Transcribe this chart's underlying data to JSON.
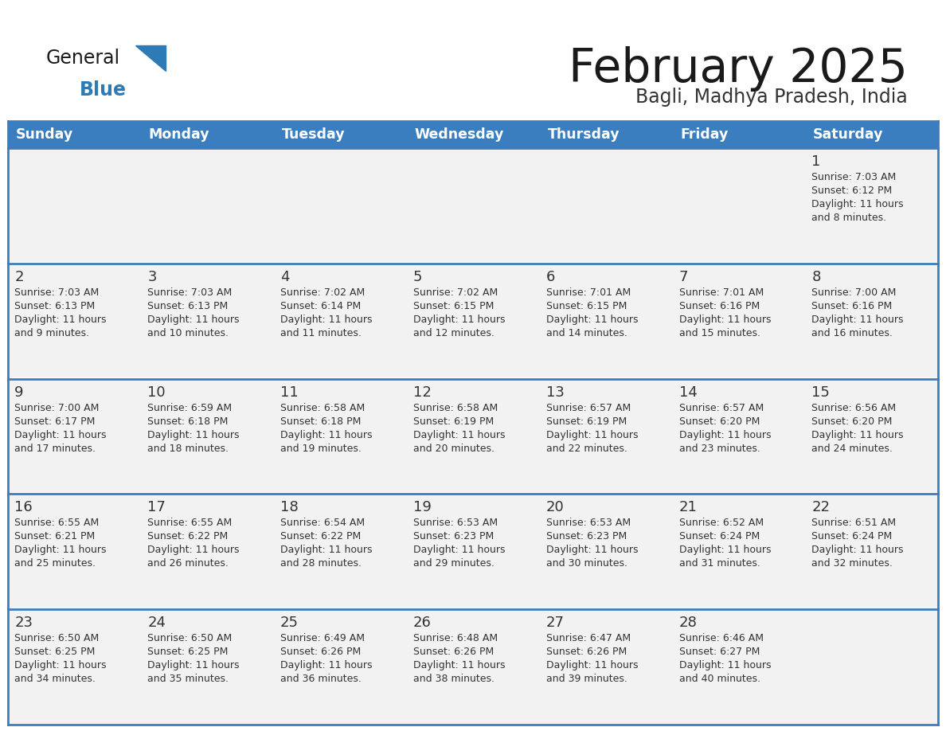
{
  "title": "February 2025",
  "subtitle": "Bagli, Madhya Pradesh, India",
  "header_color": "#3a7ebf",
  "header_text_color": "#ffffff",
  "day_names": [
    "Sunday",
    "Monday",
    "Tuesday",
    "Wednesday",
    "Thursday",
    "Friday",
    "Saturday"
  ],
  "cell_bg": "#f2f2f2",
  "cell_border_color": "#3a7ebf",
  "day_num_color": "#333333",
  "info_color": "#333333",
  "bg_color": "#ffffff",
  "title_color": "#1a1a1a",
  "subtitle_color": "#333333",
  "logo_general_color": "#1a1a1a",
  "logo_blue_color": "#2e7ab5",
  "logo_triangle_color": "#2e7ab5",
  "calendar": [
    [
      null,
      null,
      null,
      null,
      null,
      null,
      {
        "day": 1,
        "sunrise": "7:03 AM",
        "sunset": "6:12 PM",
        "daylight": "11 hours and 8 minutes."
      }
    ],
    [
      {
        "day": 2,
        "sunrise": "7:03 AM",
        "sunset": "6:13 PM",
        "daylight": "11 hours and 9 minutes."
      },
      {
        "day": 3,
        "sunrise": "7:03 AM",
        "sunset": "6:13 PM",
        "daylight": "11 hours and 10 minutes."
      },
      {
        "day": 4,
        "sunrise": "7:02 AM",
        "sunset": "6:14 PM",
        "daylight": "11 hours and 11 minutes."
      },
      {
        "day": 5,
        "sunrise": "7:02 AM",
        "sunset": "6:15 PM",
        "daylight": "11 hours and 12 minutes."
      },
      {
        "day": 6,
        "sunrise": "7:01 AM",
        "sunset": "6:15 PM",
        "daylight": "11 hours and 14 minutes."
      },
      {
        "day": 7,
        "sunrise": "7:01 AM",
        "sunset": "6:16 PM",
        "daylight": "11 hours and 15 minutes."
      },
      {
        "day": 8,
        "sunrise": "7:00 AM",
        "sunset": "6:16 PM",
        "daylight": "11 hours and 16 minutes."
      }
    ],
    [
      {
        "day": 9,
        "sunrise": "7:00 AM",
        "sunset": "6:17 PM",
        "daylight": "11 hours and 17 minutes."
      },
      {
        "day": 10,
        "sunrise": "6:59 AM",
        "sunset": "6:18 PM",
        "daylight": "11 hours and 18 minutes."
      },
      {
        "day": 11,
        "sunrise": "6:58 AM",
        "sunset": "6:18 PM",
        "daylight": "11 hours and 19 minutes."
      },
      {
        "day": 12,
        "sunrise": "6:58 AM",
        "sunset": "6:19 PM",
        "daylight": "11 hours and 20 minutes."
      },
      {
        "day": 13,
        "sunrise": "6:57 AM",
        "sunset": "6:19 PM",
        "daylight": "11 hours and 22 minutes."
      },
      {
        "day": 14,
        "sunrise": "6:57 AM",
        "sunset": "6:20 PM",
        "daylight": "11 hours and 23 minutes."
      },
      {
        "day": 15,
        "sunrise": "6:56 AM",
        "sunset": "6:20 PM",
        "daylight": "11 hours and 24 minutes."
      }
    ],
    [
      {
        "day": 16,
        "sunrise": "6:55 AM",
        "sunset": "6:21 PM",
        "daylight": "11 hours and 25 minutes."
      },
      {
        "day": 17,
        "sunrise": "6:55 AM",
        "sunset": "6:22 PM",
        "daylight": "11 hours and 26 minutes."
      },
      {
        "day": 18,
        "sunrise": "6:54 AM",
        "sunset": "6:22 PM",
        "daylight": "11 hours and 28 minutes."
      },
      {
        "day": 19,
        "sunrise": "6:53 AM",
        "sunset": "6:23 PM",
        "daylight": "11 hours and 29 minutes."
      },
      {
        "day": 20,
        "sunrise": "6:53 AM",
        "sunset": "6:23 PM",
        "daylight": "11 hours and 30 minutes."
      },
      {
        "day": 21,
        "sunrise": "6:52 AM",
        "sunset": "6:24 PM",
        "daylight": "11 hours and 31 minutes."
      },
      {
        "day": 22,
        "sunrise": "6:51 AM",
        "sunset": "6:24 PM",
        "daylight": "11 hours and 32 minutes."
      }
    ],
    [
      {
        "day": 23,
        "sunrise": "6:50 AM",
        "sunset": "6:25 PM",
        "daylight": "11 hours and 34 minutes."
      },
      {
        "day": 24,
        "sunrise": "6:50 AM",
        "sunset": "6:25 PM",
        "daylight": "11 hours and 35 minutes."
      },
      {
        "day": 25,
        "sunrise": "6:49 AM",
        "sunset": "6:26 PM",
        "daylight": "11 hours and 36 minutes."
      },
      {
        "day": 26,
        "sunrise": "6:48 AM",
        "sunset": "6:26 PM",
        "daylight": "11 hours and 38 minutes."
      },
      {
        "day": 27,
        "sunrise": "6:47 AM",
        "sunset": "6:26 PM",
        "daylight": "11 hours and 39 minutes."
      },
      {
        "day": 28,
        "sunrise": "6:46 AM",
        "sunset": "6:27 PM",
        "daylight": "11 hours and 40 minutes."
      },
      null
    ]
  ]
}
